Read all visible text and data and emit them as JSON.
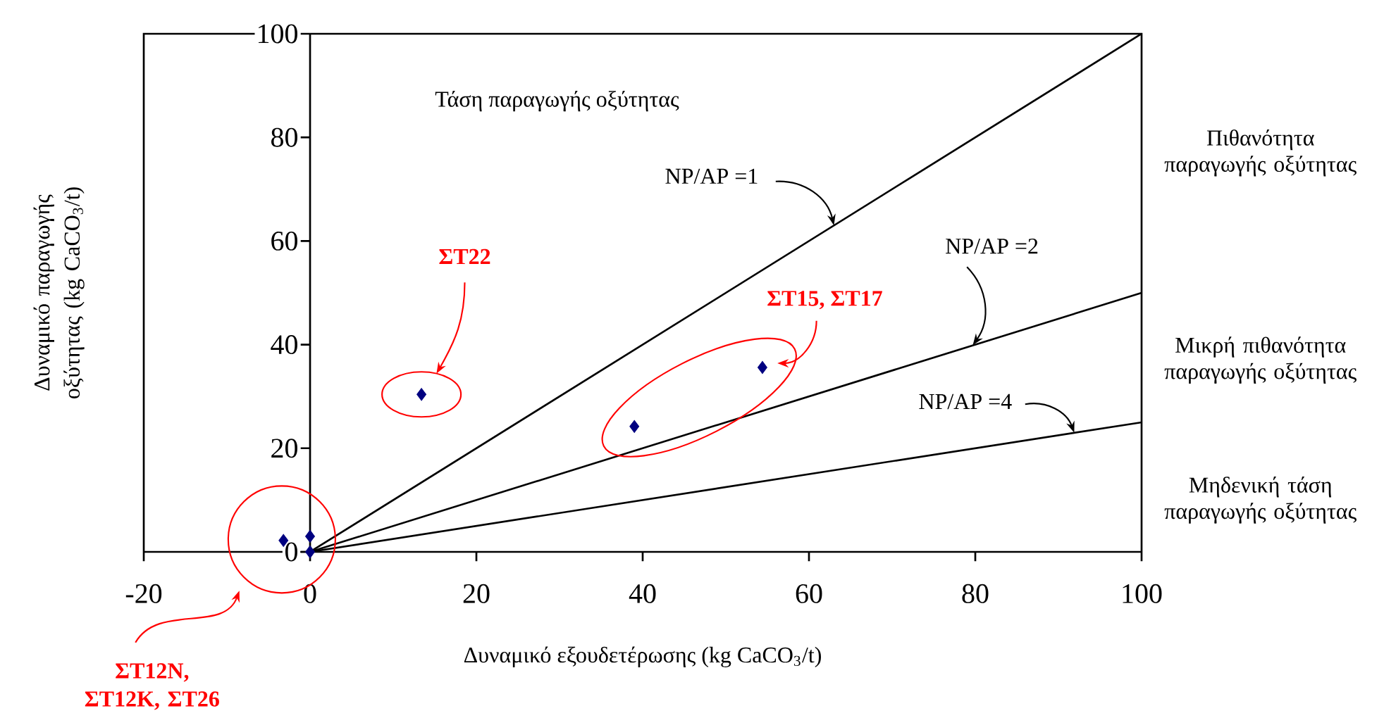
{
  "chart_data": {
    "type": "scatter",
    "xlabel": "Δυναμικό εξουδετέρωσης (kg CaCO$_{3}$/t)",
    "ylabel": "Δυναμικό παραγωγής οξύτητας (kg CaCO$_{3}$/t)",
    "grid": false,
    "xlim": [
      -20,
      100
    ],
    "ylim": [
      0,
      100
    ],
    "xticks": [
      -20,
      0,
      20,
      40,
      60,
      80,
      100
    ],
    "yticks": [
      0,
      20,
      40,
      60,
      80,
      100
    ],
    "series": [
      {
        "color": "#000080",
        "marker": "diamond",
        "x": [
          -3.2,
          0,
          0,
          13.4,
          39,
          54.4
        ],
        "values": [
          2.2,
          3,
          0,
          30.4,
          24.2,
          35.6
        ]
      },
      {
        "type": "line",
        "color": "#000000",
        "x": [
          0,
          100
        ],
        "values": [
          0,
          100
        ]
      },
      {
        "type": "line",
        "color": "#000000",
        "x": [
          0,
          100
        ],
        "values": [
          0,
          50
        ]
      },
      {
        "type": "line",
        "color": "#000000",
        "x": [
          0,
          100
        ],
        "values": [
          0,
          25
        ]
      }
    ],
    "annotations": [
      "Τάση παραγωγής οξύτητας",
      "Πιθανότητα παραγωγής οξύτητας",
      "Μικρή πιθανότητα παραγωγής οξύτητας",
      "Μηδενική τάση παραγωγής οξύτητας",
      "ΣΤ22",
      {
        "text": "ΣΤ15, ΣΤ17",
        "x": 54.4,
        "y": 35.6
      },
      "ΣΤ12Ν, ΣΤ12Κ, ΣΤ26",
      {
        "text": "NP/AP =1",
        "x": 63,
        "y": 63
      },
      {
        "text": "NP/AP =2",
        "x": 79.7,
        "y": 39.9
      },
      {
        "text": "NP/AP =4",
        "x": 91.9,
        "y": 23
      }
    ]
  }
}
